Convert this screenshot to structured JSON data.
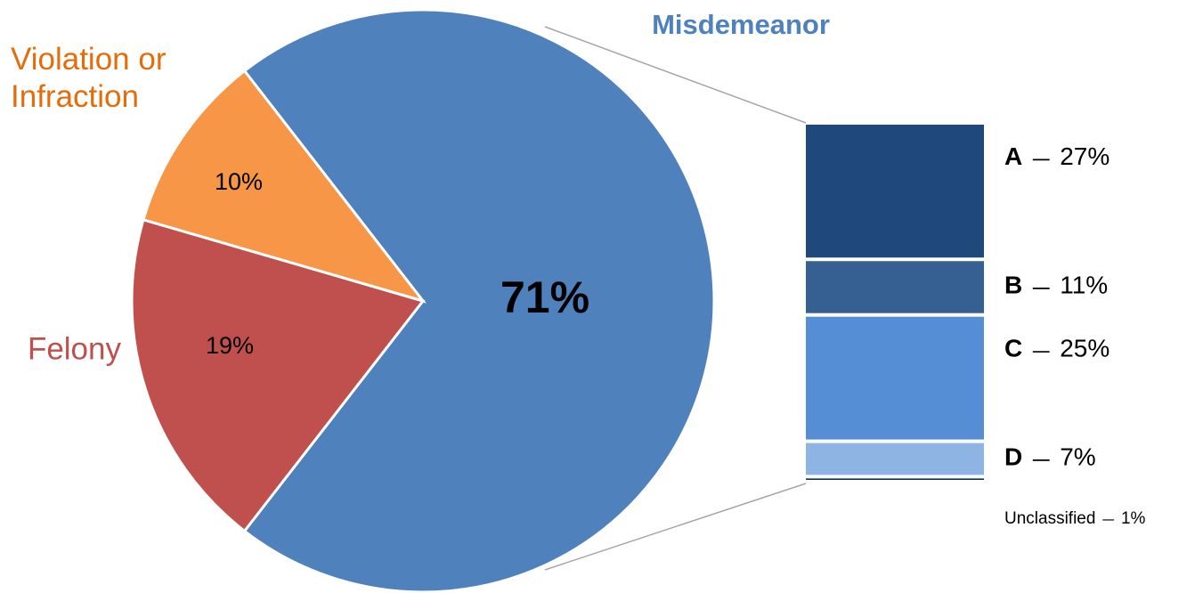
{
  "chart_data": [
    {
      "type": "pie",
      "categories": [
        "Misdemeanor",
        "Felony",
        "Violation or Infraction"
      ],
      "values": [
        71,
        19,
        10
      ],
      "value_labels": [
        "71%",
        "19%",
        "10%"
      ],
      "colors": [
        "#4f81bd",
        "#c0504d",
        "#f79646"
      ]
    },
    {
      "type": "bar",
      "categories": [
        "A",
        "B",
        "C",
        "D",
        "Unclassified"
      ],
      "values": [
        27,
        11,
        25,
        7,
        1
      ],
      "value_labels": [
        "27%",
        "11%",
        "25%",
        "7%",
        "1%"
      ],
      "colors": [
        "#1f497d",
        "#366092",
        "#558ed5",
        "#8eb4e3",
        "#17375e"
      ]
    }
  ]
}
